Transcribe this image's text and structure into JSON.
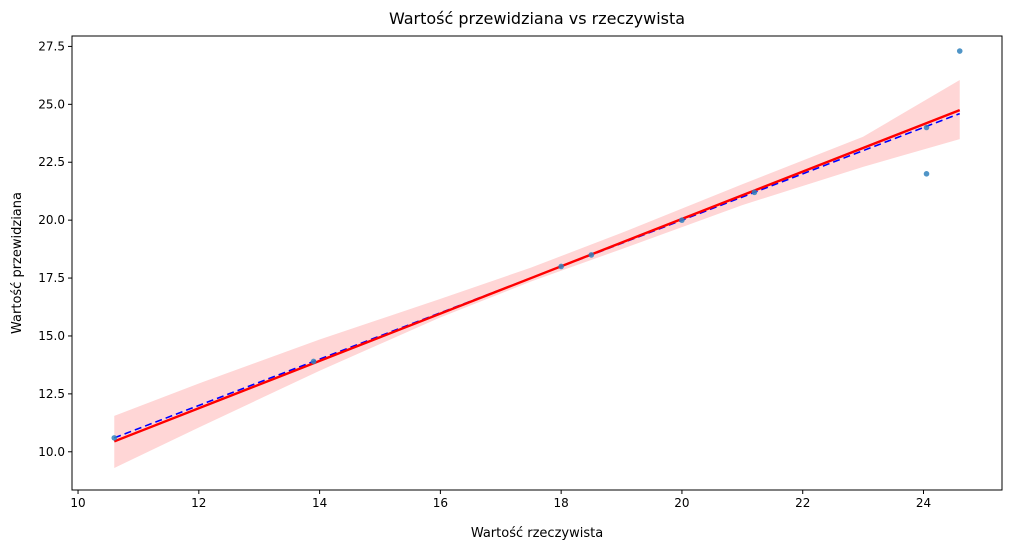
{
  "chart_data": {
    "type": "scatter",
    "title": "Wartość przewidziana vs rzeczywista",
    "xlabel": "Wartość rzeczywista",
    "ylabel": "Wartość przewidziana",
    "xlim": [
      9.9,
      25.3
    ],
    "ylim": [
      8.35,
      27.95
    ],
    "xticks": [
      10,
      12,
      14,
      16,
      18,
      20,
      22,
      24
    ],
    "yticks": [
      10.0,
      12.5,
      15.0,
      17.5,
      20.0,
      22.5,
      25.0,
      27.5
    ],
    "grid": false,
    "points": [
      {
        "x": 10.6,
        "y": 10.6
      },
      {
        "x": 13.9,
        "y": 13.9
      },
      {
        "x": 18.0,
        "y": 18.0
      },
      {
        "x": 18.5,
        "y": 18.5
      },
      {
        "x": 20.0,
        "y": 20.0
      },
      {
        "x": 21.2,
        "y": 21.2
      },
      {
        "x": 24.05,
        "y": 22.0
      },
      {
        "x": 24.05,
        "y": 24.0
      },
      {
        "x": 24.6,
        "y": 27.3
      }
    ],
    "regression": {
      "x": [
        10.6,
        24.6
      ],
      "y": [
        10.45,
        24.75
      ]
    },
    "confidence_band": {
      "x": [
        10.6,
        12.0,
        14.0,
        16.0,
        17.5,
        19.0,
        21.0,
        23.0,
        24.6
      ],
      "lower": [
        9.3,
        11.05,
        13.5,
        15.8,
        17.35,
        18.75,
        20.65,
        22.3,
        23.5
      ],
      "upper": [
        11.55,
        12.95,
        14.85,
        16.6,
        17.95,
        19.45,
        21.55,
        23.6,
        26.05
      ]
    },
    "identity_line": {
      "x": [
        10.6,
        24.6
      ],
      "y": [
        10.6,
        24.6
      ]
    },
    "colors": {
      "points": "#3182bd",
      "regression": "#ff0000",
      "band": "#ffd6d6",
      "identity": "#0000ff"
    }
  }
}
